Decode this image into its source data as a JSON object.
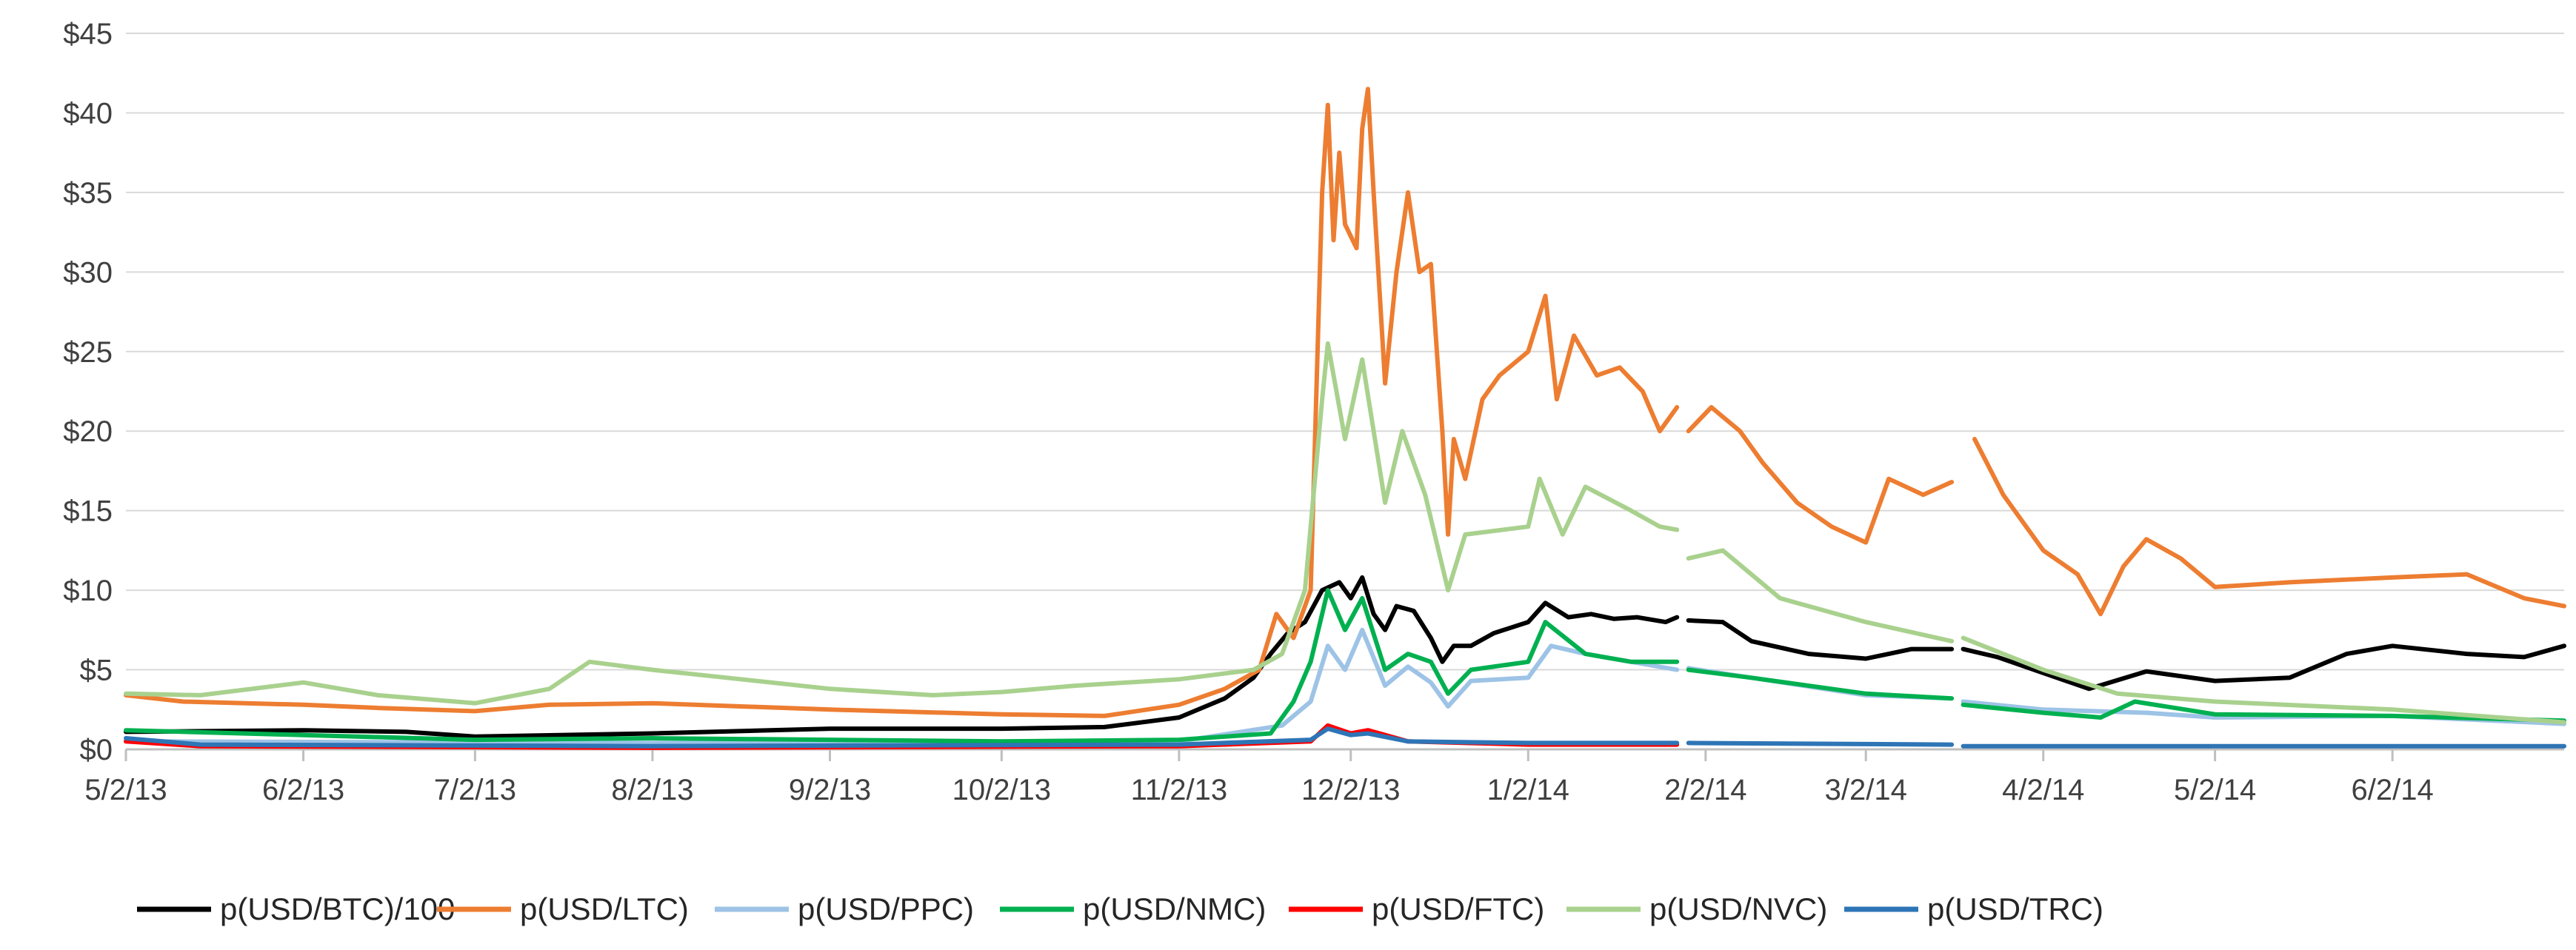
{
  "chart_data": {
    "type": "line",
    "title": "",
    "xlabel": "",
    "ylabel": "",
    "ylim": [
      0,
      45
    ],
    "yticks": [
      0,
      5,
      10,
      15,
      20,
      25,
      30,
      35,
      40,
      45
    ],
    "ytick_labels": [
      "$0",
      "$5",
      "$10",
      "$15",
      "$20",
      "$25",
      "$30",
      "$35",
      "$40",
      "$45"
    ],
    "xlim": [
      "2013-05-02",
      "2014-07-02"
    ],
    "xticks": [
      "2013-05-02",
      "2013-06-02",
      "2013-07-02",
      "2013-08-02",
      "2013-09-02",
      "2013-10-02",
      "2013-11-02",
      "2013-12-02",
      "2014-01-02",
      "2014-02-02",
      "2014-03-02",
      "2014-04-02",
      "2014-05-02",
      "2014-06-02"
    ],
    "xtick_labels": [
      "5/2/13",
      "6/2/13",
      "7/2/13",
      "8/2/13",
      "9/2/13",
      "10/2/13",
      "11/2/13",
      "12/2/13",
      "1/2/14",
      "2/2/14",
      "3/2/14",
      "4/2/14",
      "5/2/14",
      "6/2/14"
    ],
    "grid": true,
    "legend_position": "bottom",
    "series": [
      {
        "name": "p(USD/BTC)/100",
        "color": "#000000",
        "points": [
          [
            "2013-05-02",
            1.1
          ],
          [
            "2013-06-02",
            1.2
          ],
          [
            "2013-06-20",
            1.1
          ],
          [
            "2013-07-02",
            0.8
          ],
          [
            "2013-08-02",
            1.0
          ],
          [
            "2013-09-02",
            1.3
          ],
          [
            "2013-10-02",
            1.3
          ],
          [
            "2013-10-20",
            1.4
          ],
          [
            "2013-11-02",
            2.0
          ],
          [
            "2013-11-10",
            3.2
          ],
          [
            "2013-11-15",
            4.5
          ],
          [
            "2013-11-18",
            6.0
          ],
          [
            "2013-11-21",
            7.3
          ],
          [
            "2013-11-24",
            8.0
          ],
          [
            "2013-11-27",
            10.0
          ],
          [
            "2013-11-30",
            10.5
          ],
          [
            "2013-12-02",
            9.5
          ],
          [
            "2013-12-04",
            10.8
          ],
          [
            "2013-12-06",
            8.5
          ],
          [
            "2013-12-08",
            7.5
          ],
          [
            "2013-12-10",
            9.0
          ],
          [
            "2013-12-13",
            8.7
          ],
          [
            "2013-12-16",
            7.0
          ],
          [
            "2013-12-18",
            5.5
          ],
          [
            "2013-12-20",
            6.5
          ],
          [
            "2013-12-23",
            6.5
          ],
          [
            "2013-12-27",
            7.3
          ],
          [
            "2014-01-02",
            8.0
          ],
          [
            "2014-01-05",
            9.2
          ],
          [
            "2014-01-09",
            8.3
          ],
          [
            "2014-01-13",
            8.5
          ],
          [
            "2014-01-17",
            8.2
          ],
          [
            "2014-01-21",
            8.3
          ],
          [
            "2014-01-26",
            8.0
          ],
          [
            "2014-01-28",
            8.3
          ],
          [
            "2014-01-29",
            null
          ],
          [
            "2014-01-30",
            8.1
          ],
          [
            "2014-02-05",
            8.0
          ],
          [
            "2014-02-10",
            6.8
          ],
          [
            "2014-02-20",
            6.0
          ],
          [
            "2014-03-02",
            5.7
          ],
          [
            "2014-03-10",
            6.3
          ],
          [
            "2014-03-17",
            6.3
          ],
          [
            "2014-03-18",
            null
          ],
          [
            "2014-03-19",
            6.3
          ],
          [
            "2014-03-25",
            5.8
          ],
          [
            "2014-04-02",
            4.8
          ],
          [
            "2014-04-10",
            3.8
          ],
          [
            "2014-04-20",
            4.9
          ],
          [
            "2014-05-02",
            4.3
          ],
          [
            "2014-05-15",
            4.5
          ],
          [
            "2014-05-25",
            6.0
          ],
          [
            "2014-06-02",
            6.5
          ],
          [
            "2014-06-15",
            6.0
          ],
          [
            "2014-06-25",
            5.8
          ],
          [
            "2014-07-02",
            6.5
          ]
        ]
      },
      {
        "name": "p(USD/LTC)",
        "color": "#ed7d31",
        "points": [
          [
            "2013-05-02",
            3.4
          ],
          [
            "2013-05-12",
            3.0
          ],
          [
            "2013-06-02",
            2.8
          ],
          [
            "2013-06-15",
            2.6
          ],
          [
            "2013-07-02",
            2.4
          ],
          [
            "2013-07-15",
            2.8
          ],
          [
            "2013-08-02",
            2.9
          ],
          [
            "2013-09-02",
            2.5
          ],
          [
            "2013-10-02",
            2.2
          ],
          [
            "2013-10-20",
            2.1
          ],
          [
            "2013-11-02",
            2.8
          ],
          [
            "2013-11-10",
            3.8
          ],
          [
            "2013-11-16",
            5.0
          ],
          [
            "2013-11-19",
            8.5
          ],
          [
            "2013-11-22",
            7.0
          ],
          [
            "2013-11-25",
            10.0
          ],
          [
            "2013-11-27",
            35.0
          ],
          [
            "2013-11-28",
            40.5
          ],
          [
            "2013-11-29",
            32.0
          ],
          [
            "2013-11-30",
            37.5
          ],
          [
            "2013-12-01",
            33.0
          ],
          [
            "2013-12-03",
            31.5
          ],
          [
            "2013-12-04",
            39.0
          ],
          [
            "2013-12-05",
            41.5
          ],
          [
            "2013-12-06",
            35.0
          ],
          [
            "2013-12-08",
            23.0
          ],
          [
            "2013-12-10",
            30.0
          ],
          [
            "2013-12-12",
            35.0
          ],
          [
            "2013-12-14",
            30.0
          ],
          [
            "2013-12-16",
            30.5
          ],
          [
            "2013-12-18",
            20.0
          ],
          [
            "2013-12-19",
            13.5
          ],
          [
            "2013-12-20",
            19.5
          ],
          [
            "2013-12-22",
            17.0
          ],
          [
            "2013-12-25",
            22.0
          ],
          [
            "2013-12-28",
            23.5
          ],
          [
            "2014-01-02",
            25.0
          ],
          [
            "2014-01-05",
            28.5
          ],
          [
            "2014-01-07",
            22.0
          ],
          [
            "2014-01-10",
            26.0
          ],
          [
            "2014-01-14",
            23.5
          ],
          [
            "2014-01-18",
            24.0
          ],
          [
            "2014-01-22",
            22.5
          ],
          [
            "2014-01-25",
            20.0
          ],
          [
            "2014-01-28",
            21.5
          ],
          [
            "2014-01-29",
            null
          ],
          [
            "2014-01-30",
            20.0
          ],
          [
            "2014-02-03",
            21.5
          ],
          [
            "2014-02-08",
            20.0
          ],
          [
            "2014-02-12",
            18.0
          ],
          [
            "2014-02-18",
            15.5
          ],
          [
            "2014-02-24",
            14.0
          ],
          [
            "2014-03-02",
            13.0
          ],
          [
            "2014-03-06",
            17.0
          ],
          [
            "2014-03-12",
            16.0
          ],
          [
            "2014-03-17",
            16.8
          ],
          [
            "2014-03-18",
            null
          ],
          [
            "2014-03-21",
            19.5
          ],
          [
            "2014-03-26",
            16.0
          ],
          [
            "2014-04-02",
            12.5
          ],
          [
            "2014-04-08",
            11.0
          ],
          [
            "2014-04-12",
            8.5
          ],
          [
            "2014-04-16",
            11.5
          ],
          [
            "2014-04-20",
            13.2
          ],
          [
            "2014-04-26",
            12.0
          ],
          [
            "2014-05-02",
            10.2
          ],
          [
            "2014-05-15",
            10.5
          ],
          [
            "2014-06-02",
            10.8
          ],
          [
            "2014-06-15",
            11.0
          ],
          [
            "2014-06-25",
            9.5
          ],
          [
            "2014-07-02",
            9.0
          ]
        ]
      },
      {
        "name": "p(USD/PPC)",
        "color": "#9dc3e6",
        "points": [
          [
            "2013-05-02",
            0.5
          ],
          [
            "2013-08-02",
            0.4
          ],
          [
            "2013-11-02",
            0.5
          ],
          [
            "2013-11-20",
            1.5
          ],
          [
            "2013-11-25",
            3.0
          ],
          [
            "2013-11-28",
            6.5
          ],
          [
            "2013-12-01",
            5.0
          ],
          [
            "2013-12-04",
            7.5
          ],
          [
            "2013-12-08",
            4.0
          ],
          [
            "2013-12-12",
            5.2
          ],
          [
            "2013-12-16",
            4.2
          ],
          [
            "2013-12-19",
            2.7
          ],
          [
            "2013-12-23",
            4.3
          ],
          [
            "2014-01-02",
            4.5
          ],
          [
            "2014-01-06",
            6.5
          ],
          [
            "2014-01-12",
            6.0
          ],
          [
            "2014-01-20",
            5.5
          ],
          [
            "2014-01-28",
            5.0
          ],
          [
            "2014-01-29",
            null
          ],
          [
            "2014-01-30",
            5.1
          ],
          [
            "2014-02-10",
            4.5
          ],
          [
            "2014-03-02",
            3.4
          ],
          [
            "2014-03-17",
            3.2
          ],
          [
            "2014-03-18",
            null
          ],
          [
            "2014-03-19",
            3.0
          ],
          [
            "2014-04-02",
            2.5
          ],
          [
            "2014-04-20",
            2.3
          ],
          [
            "2014-05-02",
            2.0
          ],
          [
            "2014-06-02",
            2.1
          ],
          [
            "2014-07-02",
            1.6
          ]
        ]
      },
      {
        "name": "p(USD/NMC)",
        "color": "#00b050",
        "points": [
          [
            "2013-05-02",
            1.2
          ],
          [
            "2013-06-02",
            0.9
          ],
          [
            "2013-07-02",
            0.6
          ],
          [
            "2013-08-02",
            0.7
          ],
          [
            "2013-09-02",
            0.6
          ],
          [
            "2013-10-02",
            0.5
          ],
          [
            "2013-11-02",
            0.6
          ],
          [
            "2013-11-18",
            1.0
          ],
          [
            "2013-11-22",
            3.0
          ],
          [
            "2013-11-25",
            5.5
          ],
          [
            "2013-11-28",
            10.0
          ],
          [
            "2013-12-01",
            7.5
          ],
          [
            "2013-12-04",
            9.5
          ],
          [
            "2013-12-08",
            5.0
          ],
          [
            "2013-12-12",
            6.0
          ],
          [
            "2013-12-16",
            5.5
          ],
          [
            "2013-12-19",
            3.5
          ],
          [
            "2013-12-23",
            5.0
          ],
          [
            "2014-01-02",
            5.5
          ],
          [
            "2014-01-05",
            8.0
          ],
          [
            "2014-01-12",
            6.0
          ],
          [
            "2014-01-20",
            5.5
          ],
          [
            "2014-01-28",
            5.5
          ],
          [
            "2014-01-29",
            null
          ],
          [
            "2014-01-30",
            5.0
          ],
          [
            "2014-02-10",
            4.5
          ],
          [
            "2014-03-02",
            3.5
          ],
          [
            "2014-03-17",
            3.2
          ],
          [
            "2014-03-18",
            null
          ],
          [
            "2014-03-19",
            2.8
          ],
          [
            "2014-04-02",
            2.3
          ],
          [
            "2014-04-12",
            2.0
          ],
          [
            "2014-04-18",
            3.0
          ],
          [
            "2014-05-02",
            2.2
          ],
          [
            "2014-06-02",
            2.1
          ],
          [
            "2014-07-02",
            1.8
          ]
        ]
      },
      {
        "name": "p(USD/FTC)",
        "color": "#ff0000",
        "points": [
          [
            "2013-05-02",
            0.5
          ],
          [
            "2013-05-15",
            0.2
          ],
          [
            "2013-08-02",
            0.1
          ],
          [
            "2013-11-02",
            0.2
          ],
          [
            "2013-11-25",
            0.5
          ],
          [
            "2013-11-28",
            1.5
          ],
          [
            "2013-12-02",
            1.0
          ],
          [
            "2013-12-05",
            1.2
          ],
          [
            "2013-12-12",
            0.5
          ],
          [
            "2014-01-02",
            0.3
          ],
          [
            "2014-01-28",
            0.3
          ],
          [
            "2014-01-29",
            null
          ]
        ]
      },
      {
        "name": "p(USD/NVC)",
        "color": "#a9d18e",
        "points": [
          [
            "2013-05-02",
            3.5
          ],
          [
            "2013-05-15",
            3.4
          ],
          [
            "2013-06-02",
            4.2
          ],
          [
            "2013-06-15",
            3.4
          ],
          [
            "2013-07-02",
            2.9
          ],
          [
            "2013-07-15",
            3.8
          ],
          [
            "2013-07-22",
            5.5
          ],
          [
            "2013-08-02",
            5.0
          ],
          [
            "2013-08-15",
            4.5
          ],
          [
            "2013-09-02",
            3.8
          ],
          [
            "2013-09-20",
            3.4
          ],
          [
            "2013-10-02",
            3.6
          ],
          [
            "2013-10-15",
            4.0
          ],
          [
            "2013-11-02",
            4.4
          ],
          [
            "2013-11-15",
            5.0
          ],
          [
            "2013-11-20",
            6.0
          ],
          [
            "2013-11-24",
            10.0
          ],
          [
            "2013-11-27",
            22.0
          ],
          [
            "2013-11-28",
            25.5
          ],
          [
            "2013-12-01",
            19.5
          ],
          [
            "2013-12-04",
            24.5
          ],
          [
            "2013-12-08",
            15.5
          ],
          [
            "2013-12-11",
            20.0
          ],
          [
            "2013-12-15",
            16.0
          ],
          [
            "2013-12-19",
            10.0
          ],
          [
            "2013-12-22",
            13.5
          ],
          [
            "2014-01-02",
            14.0
          ],
          [
            "2014-01-04",
            17.0
          ],
          [
            "2014-01-08",
            13.5
          ],
          [
            "2014-01-12",
            16.5
          ],
          [
            "2014-01-20",
            15.0
          ],
          [
            "2014-01-25",
            14.0
          ],
          [
            "2014-01-28",
            13.8
          ],
          [
            "2014-01-29",
            null
          ],
          [
            "2014-01-30",
            12.0
          ],
          [
            "2014-02-05",
            12.5
          ],
          [
            "2014-02-15",
            9.5
          ],
          [
            "2014-03-02",
            8.0
          ],
          [
            "2014-03-17",
            6.8
          ],
          [
            "2014-03-18",
            null
          ],
          [
            "2014-03-19",
            7.0
          ],
          [
            "2014-04-02",
            5.0
          ],
          [
            "2014-04-15",
            3.5
          ],
          [
            "2014-05-02",
            3.0
          ],
          [
            "2014-06-02",
            2.5
          ],
          [
            "2014-07-02",
            1.7
          ]
        ]
      },
      {
        "name": "p(USD/TRC)",
        "color": "#2e75b6",
        "points": [
          [
            "2013-05-02",
            0.7
          ],
          [
            "2013-05-15",
            0.3
          ],
          [
            "2013-08-02",
            0.2
          ],
          [
            "2013-11-02",
            0.3
          ],
          [
            "2013-11-25",
            0.6
          ],
          [
            "2013-11-28",
            1.3
          ],
          [
            "2013-12-02",
            0.9
          ],
          [
            "2013-12-05",
            1.0
          ],
          [
            "2013-12-12",
            0.5
          ],
          [
            "2014-01-02",
            0.4
          ],
          [
            "2014-01-28",
            0.4
          ],
          [
            "2014-01-29",
            null
          ],
          [
            "2014-01-30",
            0.4
          ],
          [
            "2014-03-17",
            0.3
          ],
          [
            "2014-03-18",
            null
          ],
          [
            "2014-03-19",
            0.2
          ],
          [
            "2014-07-02",
            0.2
          ]
        ]
      }
    ]
  }
}
